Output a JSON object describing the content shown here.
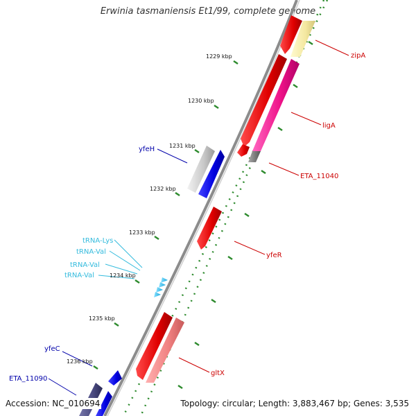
{
  "title": "Erwinia tasmaniensis Et1/99, complete genome",
  "footer": {
    "accession": "Accession: NC_010694",
    "topology": "Topology: circular; Length: 3,883,467 bp; Genes: 3,535"
  },
  "colors": {
    "backbone": "#8c8c8c",
    "tick_major": "#2e8b2e",
    "tick_minor": "#2e8b2e",
    "forward_label": "#cc0000",
    "reverse_label": "#0000aa",
    "trna_label": "#33bbdd"
  },
  "ticks": [
    {
      "label": "1229 kbp"
    },
    {
      "label": "1230 kbp"
    },
    {
      "label": "1231 kbp"
    },
    {
      "label": "1232 kbp"
    },
    {
      "label": "1233 kbp"
    },
    {
      "label": "1234 kbp"
    },
    {
      "label": "1235 kbp"
    },
    {
      "label": "1236 kbp"
    }
  ],
  "genes": [
    {
      "name": "zipA",
      "color": "#cc0000"
    },
    {
      "name": "ligA",
      "color": "#cc0000"
    },
    {
      "name": "ETA_11040",
      "color": "#cc0000"
    },
    {
      "name": "yfeR",
      "color": "#cc0000"
    },
    {
      "name": "gltX",
      "color": "#cc0000"
    },
    {
      "name": "yfeH",
      "color": "#0000aa"
    },
    {
      "name": "yfeC",
      "color": "#0000aa"
    },
    {
      "name": "ETA_11090",
      "color": "#0000aa"
    },
    {
      "name": "tRNA-Lys",
      "color": "#33bbdd"
    },
    {
      "name": "tRNA-Val",
      "color": "#33bbdd"
    },
    {
      "name": "tRNA-Val",
      "color": "#33bbdd"
    },
    {
      "name": "tRNA-Val",
      "color": "#33bbdd"
    }
  ]
}
